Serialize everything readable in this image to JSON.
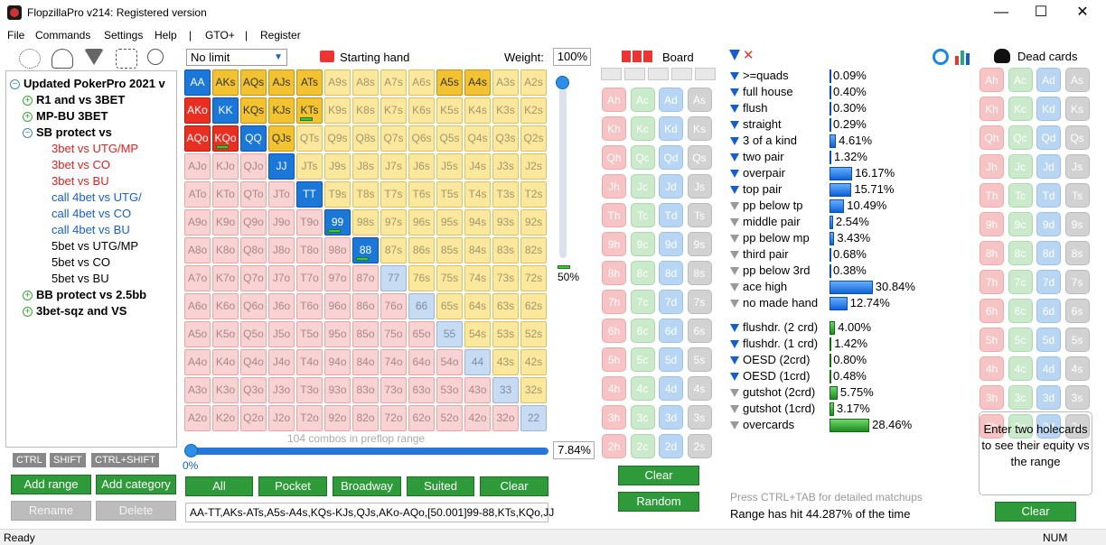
{
  "window": {
    "title": "FlopzillaPro v214: Registered version",
    "minimize": "—",
    "maximize": "☐",
    "close": "✕"
  },
  "menu": [
    "File",
    "Commands",
    "Settings",
    "Help",
    "|",
    "GTO+",
    "|",
    "Register"
  ],
  "tree": [
    {
      "label": "Updated PokerPro 2021 v",
      "style": "bold",
      "indent": 0,
      "icon": "minus"
    },
    {
      "label": "R1 and vs 3BET",
      "style": "bold",
      "indent": 1,
      "icon": "plus"
    },
    {
      "label": "MP-BU 3BET",
      "style": "bold",
      "indent": 1,
      "icon": "plus"
    },
    {
      "label": "SB protect vs",
      "style": "bold",
      "indent": 1,
      "icon": "minus"
    },
    {
      "label": "3bet vs UTG/MP",
      "style": "red",
      "indent": 2,
      "icon": ""
    },
    {
      "label": "3bet vs CO",
      "style": "red",
      "indent": 2,
      "icon": ""
    },
    {
      "label": "3bet vs BU",
      "style": "red",
      "indent": 2,
      "icon": ""
    },
    {
      "label": "call 4bet vs UTG/",
      "style": "blue",
      "indent": 2,
      "icon": ""
    },
    {
      "label": "call 4bet vs CO",
      "style": "blue",
      "indent": 2,
      "icon": ""
    },
    {
      "label": "call 4bet vs BU",
      "style": "blue",
      "indent": 2,
      "icon": ""
    },
    {
      "label": "5bet vs UTG/MP",
      "style": "",
      "indent": 2,
      "icon": ""
    },
    {
      "label": "5bet vs CO",
      "style": "",
      "indent": 2,
      "icon": ""
    },
    {
      "label": "5bet vs BU",
      "style": "",
      "indent": 2,
      "icon": ""
    },
    {
      "label": "BB protect vs 2.5bb",
      "style": "bold",
      "indent": 1,
      "icon": "plus"
    },
    {
      "label": "3bet-sqz and VS",
      "style": "bold",
      "indent": 1,
      "icon": "plus"
    }
  ],
  "keys": {
    "ctrl": "CTRL",
    "shift": "SHIFT",
    "ctrlshift": "CTRL+SHIFT"
  },
  "left_buttons": {
    "add_range": "Add range",
    "add_category": "Add category",
    "rename": "Rename",
    "delete": "Delete"
  },
  "range": {
    "limit_select": "No limit",
    "starting_hand_label": "Starting hand",
    "weight_label": "Weight:",
    "weight_value": "100%",
    "slider_pct": "50%",
    "combos_text": "104 combos in preflop range",
    "range_pct": "7.84%",
    "range_zero": "0%",
    "range_string": "AA-TT,AKs-ATs,A5s-A4s,KQs-KJs,QJs,AKo-AQo,[50.001]99-88,KTs,KQo,JJ",
    "ranks": [
      "A",
      "K",
      "Q",
      "J",
      "T",
      "9",
      "8",
      "7",
      "6",
      "5",
      "4",
      "3",
      "2"
    ],
    "selected": [
      "AA",
      "AKs",
      "AQs",
      "AJs",
      "ATs",
      "A5s",
      "A4s",
      "AKo",
      "KK",
      "KQs",
      "KJs",
      "KTs",
      "AQo",
      "KQo",
      "QQ",
      "QJs",
      "JJ",
      "TT",
      "99",
      "88"
    ],
    "partial": [
      "KTs",
      "KQo",
      "99",
      "88"
    ]
  },
  "range_buttons": {
    "all": "All",
    "pocket": "Pocket",
    "broadway": "Broadway",
    "suited": "Suited",
    "clear": "Clear"
  },
  "board": {
    "label": "Board",
    "clear": "Clear",
    "random": "Random"
  },
  "cards_ranks": [
    "A",
    "K",
    "Q",
    "J",
    "T",
    "9",
    "8",
    "7",
    "6",
    "5",
    "4",
    "3",
    "2"
  ],
  "cards_suits": [
    "h",
    "c",
    "d",
    "s"
  ],
  "categories": {
    "made": [
      {
        "label": ">=quads",
        "value": "0.09%",
        "pct": 0.09,
        "icon": "blue"
      },
      {
        "label": "full house",
        "value": "0.40%",
        "pct": 0.4,
        "icon": "blue"
      },
      {
        "label": "flush",
        "value": "0.30%",
        "pct": 0.3,
        "icon": "blue"
      },
      {
        "label": "straight",
        "value": "0.29%",
        "pct": 0.29,
        "icon": "blue"
      },
      {
        "label": "3 of a kind",
        "value": "4.61%",
        "pct": 4.61,
        "icon": "blue"
      },
      {
        "label": "two pair",
        "value": "1.32%",
        "pct": 1.32,
        "icon": "blue"
      },
      {
        "label": "overpair",
        "value": "16.17%",
        "pct": 16.17,
        "icon": "blue"
      },
      {
        "label": "top pair",
        "value": "15.71%",
        "pct": 15.71,
        "icon": "blue"
      },
      {
        "label": "pp below tp",
        "value": "10.49%",
        "pct": 10.49,
        "icon": "grey"
      },
      {
        "label": "middle pair",
        "value": "2.54%",
        "pct": 2.54,
        "icon": "grey"
      },
      {
        "label": "pp below mp",
        "value": "3.43%",
        "pct": 3.43,
        "icon": "grey"
      },
      {
        "label": "third pair",
        "value": "0.68%",
        "pct": 0.68,
        "icon": "grey"
      },
      {
        "label": "pp below 3rd",
        "value": "0.38%",
        "pct": 0.38,
        "icon": "grey"
      },
      {
        "label": "ace high",
        "value": "30.84%",
        "pct": 30.84,
        "icon": "grey"
      },
      {
        "label": "no made hand",
        "value": "12.74%",
        "pct": 12.74,
        "icon": "grey"
      }
    ],
    "draws": [
      {
        "label": "flushdr. (2 crd)",
        "value": "4.00%",
        "pct": 4.0,
        "icon": "blue"
      },
      {
        "label": "flushdr. (1 crd)",
        "value": "1.42%",
        "pct": 1.42,
        "icon": "blue"
      },
      {
        "label": "OESD (2crd)",
        "value": "0.80%",
        "pct": 0.8,
        "icon": "blue"
      },
      {
        "label": "OESD (1crd)",
        "value": "0.48%",
        "pct": 0.48,
        "icon": "blue"
      },
      {
        "label": "gutshot (2crd)",
        "value": "5.75%",
        "pct": 5.75,
        "icon": "grey"
      },
      {
        "label": "gutshot (1crd)",
        "value": "3.17%",
        "pct": 3.17,
        "icon": "grey"
      },
      {
        "label": "overcards",
        "value": "28.46%",
        "pct": 28.46,
        "icon": "grey"
      }
    ]
  },
  "matchup_hint": "Press CTRL+TAB for detailed matchups",
  "hit_text": "Range has hit 44.287% of the time",
  "dead": {
    "label": "Dead cards",
    "info": "Enter two holecards to see their equity vs the range",
    "clear": "Clear"
  },
  "status": {
    "left": "Ready",
    "right": "NUM"
  }
}
